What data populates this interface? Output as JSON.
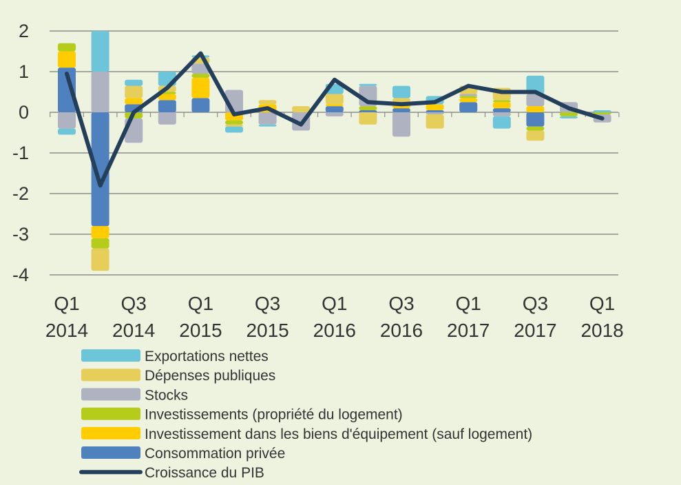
{
  "chart_data": {
    "type": "bar",
    "stacked": true,
    "title": "",
    "xlabel": "",
    "ylabel": "",
    "ylim": [
      -4,
      2
    ],
    "yticks": [
      2,
      1,
      0,
      -1,
      -2,
      -3,
      -4
    ],
    "grid": true,
    "legend_position": "bottom",
    "categories": [
      "Q1 2014",
      "Q2 2014",
      "Q3 2014",
      "Q4 2014",
      "Q1 2015",
      "Q2 2015",
      "Q3 2015",
      "Q4 2015",
      "Q1 2016",
      "Q2 2016",
      "Q3 2016",
      "Q4 2016",
      "Q1 2017",
      "Q2 2017",
      "Q3 2017",
      "Q4 2017",
      "Q1 2018"
    ],
    "x_tick_labels": [
      {
        "index": 0,
        "line1": "Q1",
        "line2": "2014"
      },
      {
        "index": 2,
        "line1": "Q3",
        "line2": "2014"
      },
      {
        "index": 4,
        "line1": "Q1",
        "line2": "2015"
      },
      {
        "index": 6,
        "line1": "Q3",
        "line2": "2015"
      },
      {
        "index": 8,
        "line1": "Q1",
        "line2": "2016"
      },
      {
        "index": 10,
        "line1": "Q3",
        "line2": "2016"
      },
      {
        "index": 12,
        "line1": "Q1",
        "line2": "2017"
      },
      {
        "index": 14,
        "line1": "Q3",
        "line2": "2017"
      },
      {
        "index": 16,
        "line1": "Q1",
        "line2": "2018"
      }
    ],
    "series": [
      {
        "name": "Consommation privée",
        "key": "consommation",
        "color": "#4E81BD",
        "values": [
          1.1,
          -2.8,
          0.2,
          0.3,
          0.35,
          0.0,
          0.0,
          0.0,
          0.15,
          0.05,
          0.1,
          0.05,
          0.25,
          0.1,
          -0.35,
          0.0,
          0.0
        ]
      },
      {
        "name": "Investissement dans les biens d'équipement (sauf logement)",
        "key": "equipement",
        "color": "#FFCC00",
        "values": [
          0.4,
          -0.3,
          0.15,
          0.15,
          0.5,
          -0.2,
          0.2,
          0.0,
          0.05,
          0.0,
          0.1,
          0.15,
          0.1,
          0.15,
          0.15,
          0.0,
          0.0
        ]
      },
      {
        "name": "Investissements (propriété du logement)",
        "key": "logement",
        "color": "#B5CC1A",
        "values": [
          0.2,
          -0.25,
          -0.15,
          0.05,
          0.1,
          -0.1,
          0.0,
          0.0,
          0.0,
          0.1,
          0.05,
          0.0,
          0.05,
          0.05,
          -0.1,
          -0.1,
          -0.05
        ]
      },
      {
        "name": "Stocks",
        "key": "stocks",
        "color": "#AEB2C1",
        "values": [
          -0.4,
          1.0,
          -0.6,
          -0.3,
          0.25,
          0.55,
          -0.3,
          -0.45,
          -0.1,
          0.5,
          -0.6,
          -0.05,
          0.05,
          -0.1,
          0.3,
          0.25,
          -0.2
        ]
      },
      {
        "name": "Dépenses publiques",
        "key": "depenses",
        "color": "#E6CE5A",
        "values": [
          0.0,
          -0.55,
          0.3,
          0.15,
          0.15,
          -0.05,
          0.1,
          0.15,
          0.25,
          -0.3,
          0.1,
          -0.35,
          0.2,
          0.3,
          -0.25,
          0.0,
          0.0
        ]
      },
      {
        "name": "Exportations nettes",
        "key": "exportations",
        "color": "#6CC5D8",
        "values": [
          -0.15,
          1.0,
          0.15,
          0.35,
          0.05,
          -0.15,
          -0.05,
          0.0,
          0.25,
          0.05,
          0.3,
          0.2,
          0.0,
          -0.3,
          0.45,
          -0.05,
          0.05
        ]
      }
    ],
    "line": {
      "name": "Croissance du PIB",
      "key": "pib",
      "color": "#243F5C",
      "values": [
        0.95,
        -1.8,
        0.0,
        0.6,
        1.45,
        -0.05,
        0.1,
        -0.3,
        0.8,
        0.25,
        0.2,
        0.25,
        0.65,
        0.5,
        0.5,
        0.1,
        -0.15
      ]
    },
    "legend_order": [
      "exportations",
      "depenses",
      "stocks",
      "logement",
      "equipement",
      "consommation",
      "pib"
    ]
  }
}
